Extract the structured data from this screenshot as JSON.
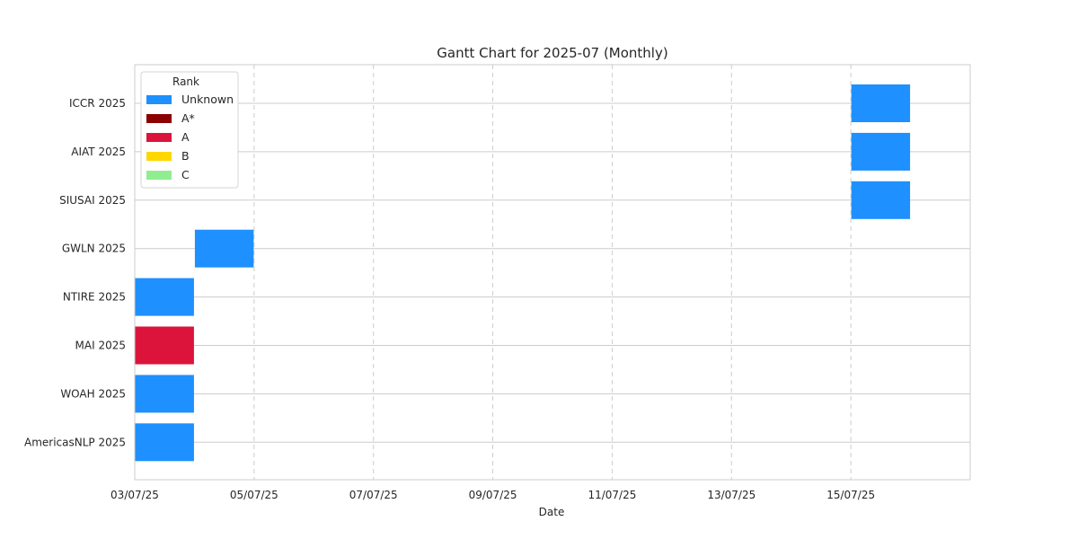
{
  "chart_data": {
    "type": "gantt",
    "title": "Gantt Chart for 2025-07 (Monthly)",
    "xlabel": "Date",
    "ylabel": "",
    "x_domain": [
      "2025-07-03",
      "2025-07-17"
    ],
    "x_ticks": [
      {
        "date": "2025-07-03",
        "label": "03/07/25"
      },
      {
        "date": "2025-07-05",
        "label": "05/07/25"
      },
      {
        "date": "2025-07-07",
        "label": "07/07/25"
      },
      {
        "date": "2025-07-09",
        "label": "09/07/25"
      },
      {
        "date": "2025-07-11",
        "label": "11/07/25"
      },
      {
        "date": "2025-07-13",
        "label": "13/07/25"
      },
      {
        "date": "2025-07-15",
        "label": "15/07/25"
      }
    ],
    "rank_colors": {
      "Unknown": "#1E90FF",
      "A*": "#8B0000",
      "A": "#DC143C",
      "B": "#FFD700",
      "C": "#90EE90"
    },
    "legend": {
      "title": "Rank",
      "position": "top-left",
      "entries": [
        "Unknown",
        "A*",
        "A",
        "B",
        "C"
      ]
    },
    "grid": true,
    "tasks": [
      {
        "name": "ICCR 2025",
        "start": "2025-07-15",
        "end": "2025-07-16",
        "rank": "Unknown"
      },
      {
        "name": "AIAT 2025",
        "start": "2025-07-15",
        "end": "2025-07-16",
        "rank": "Unknown"
      },
      {
        "name": "SIUSAI 2025",
        "start": "2025-07-15",
        "end": "2025-07-16",
        "rank": "Unknown"
      },
      {
        "name": "GWLN 2025",
        "start": "2025-07-04",
        "end": "2025-07-05",
        "rank": "Unknown"
      },
      {
        "name": "NTIRE 2025",
        "start": "2025-07-03",
        "end": "2025-07-04",
        "rank": "Unknown"
      },
      {
        "name": "MAI 2025",
        "start": "2025-07-03",
        "end": "2025-07-04",
        "rank": "A"
      },
      {
        "name": "WOAH 2025",
        "start": "2025-07-03",
        "end": "2025-07-04",
        "rank": "Unknown"
      },
      {
        "name": "AmericasNLP 2025",
        "start": "2025-07-03",
        "end": "2025-07-04",
        "rank": "Unknown"
      }
    ]
  }
}
